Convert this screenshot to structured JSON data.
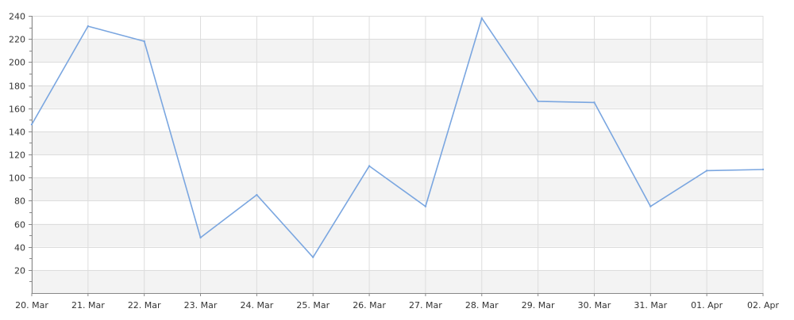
{
  "chart_data": {
    "type": "line",
    "title": "",
    "xlabel": "",
    "ylabel": "",
    "categories": [
      "20. Mar",
      "21. Mar",
      "22. Mar",
      "23. Mar",
      "24. Mar",
      "25. Mar",
      "26. Mar",
      "27. Mar",
      "28. Mar",
      "29. Mar",
      "30. Mar",
      "31. Mar",
      "01. Apr",
      "02. Apr"
    ],
    "series": [
      {
        "values": [
          146,
          231,
          218,
          48,
          85,
          31,
          110,
          75,
          238,
          166,
          165,
          75,
          106,
          107
        ]
      }
    ],
    "y_ticks": [
      "20",
      "40",
      "60",
      "80",
      "100",
      "120",
      "140",
      "160",
      "180",
      "200",
      "220",
      "240"
    ],
    "ylim": [
      0,
      240
    ],
    "grid": true,
    "legend": "none",
    "colors": {
      "line": "#7aa6e0",
      "band": "#f3f3f3",
      "grid": "#dddddd",
      "axis": "#888888"
    }
  }
}
